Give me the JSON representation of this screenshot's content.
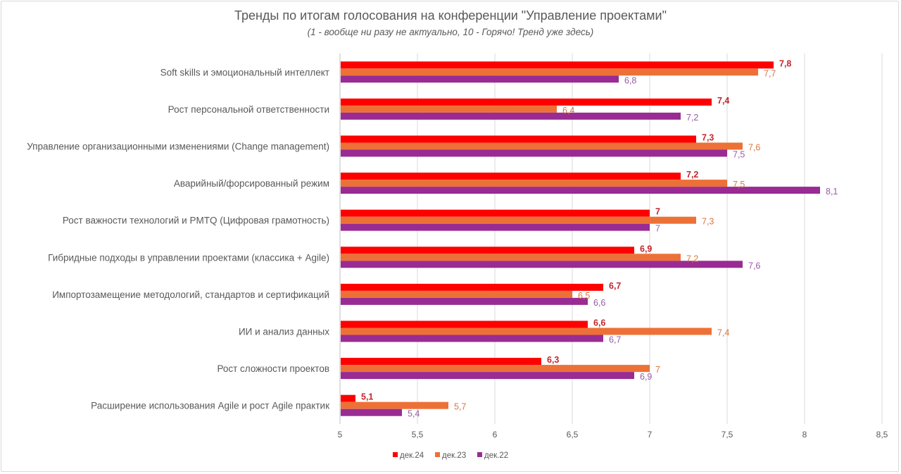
{
  "chart_data": {
    "type": "bar",
    "orientation": "horizontal",
    "title": "Тренды по итогам голосования на конференции \"Управление проектами\"",
    "subtitle": "(1 - вообще ни разу не актуально, 10 - Горячо! Тренд уже здесь)",
    "xlabel": "",
    "ylabel": "",
    "xlim": [
      5,
      8.5
    ],
    "xticks": [
      "5",
      "5,5",
      "6",
      "6,5",
      "7",
      "7,5",
      "8",
      "8,5"
    ],
    "xtick_values": [
      5,
      5.5,
      6,
      6.5,
      7,
      7.5,
      8,
      8.5
    ],
    "grid": true,
    "legend_position": "bottom",
    "categories": [
      "Soft skills и эмоциональный интеллект",
      "Рост персональной ответственности",
      "Управление организационными изменениями (Change management)",
      "Аварийный/форсированный режим",
      "Рост важности технологий и PMTQ (Цифровая грамотность)",
      "Гибридные подходы в управлении проектами (классика + Agile)",
      "Импортозамещение методологий, стандартов и сертификаций",
      "ИИ и анализ данных",
      "Рост сложности проектов",
      "Расширение использования Agile и рост Agile практик"
    ],
    "series": [
      {
        "name": "дек.24",
        "color": "#ff0000",
        "label_color": "#c0272d",
        "bold_labels": true,
        "values": [
          7.8,
          7.4,
          7.3,
          7.2,
          7.0,
          6.9,
          6.7,
          6.6,
          6.3,
          5.1
        ],
        "labels": [
          "7,8",
          "7,4",
          "7,3",
          "7,2",
          "7",
          "6,9",
          "6,7",
          "6,6",
          "6,3",
          "5,1"
        ]
      },
      {
        "name": "дек.23",
        "color": "#ed7137",
        "label_color": "#d9773f",
        "bold_labels": false,
        "values": [
          7.7,
          6.4,
          7.6,
          7.5,
          7.3,
          7.2,
          6.5,
          7.4,
          7.0,
          5.7
        ],
        "labels": [
          "7,7",
          "6,4",
          "7,6",
          "7,5",
          "7,3",
          "7,2",
          "6,5",
          "7,4",
          "7",
          "5,7"
        ]
      },
      {
        "name": "дек.22",
        "color": "#992b93",
        "label_color": "#9a5ba8",
        "bold_labels": false,
        "values": [
          6.8,
          7.2,
          7.5,
          8.1,
          7.0,
          7.6,
          6.6,
          6.7,
          6.9,
          5.4
        ],
        "labels": [
          "6,8",
          "7,2",
          "7,5",
          "8,1",
          "7",
          "7,6",
          "6,6",
          "6,7",
          "6,9",
          "5,4"
        ]
      }
    ]
  }
}
